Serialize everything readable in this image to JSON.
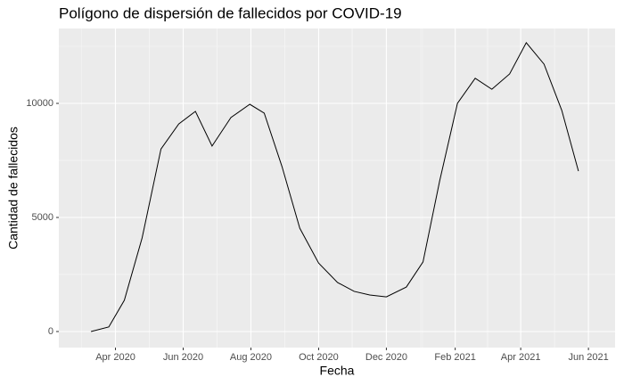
{
  "chart_data": {
    "type": "line",
    "title": "Polígono de dispersión de fallecidos por COVID-19",
    "x_label": "Fecha",
    "y_label": "Cantidad de fallecidos",
    "x": [
      "2020-03-10",
      "2020-03-26",
      "2020-04-09",
      "2020-04-25",
      "2020-05-12",
      "2020-05-28",
      "2020-06-12",
      "2020-06-27",
      "2020-07-14",
      "2020-07-31",
      "2020-08-13",
      "2020-08-29",
      "2020-09-14",
      "2020-10-01",
      "2020-10-18",
      "2020-11-02",
      "2020-11-16",
      "2020-12-01",
      "2020-12-19",
      "2021-01-03",
      "2021-01-18",
      "2021-02-03",
      "2021-02-19",
      "2021-03-06",
      "2021-03-22",
      "2021-04-06",
      "2021-04-22",
      "2021-05-08",
      "2021-05-23"
    ],
    "series": [
      {
        "color": "#000000",
        "values": [
          0,
          200,
          1370,
          4100,
          8000,
          9100,
          9650,
          8130,
          9380,
          9960,
          9570,
          7230,
          4530,
          3000,
          2150,
          1760,
          1600,
          1520,
          1950,
          3050,
          6600,
          10000,
          11100,
          10620,
          11290,
          12660,
          11720,
          9690,
          7030
        ]
      }
    ],
    "xlim": [
      "2020-02-10",
      "2021-06-25"
    ],
    "xticks": [
      {
        "value": "2020-04-01",
        "label": "Apr 2020"
      },
      {
        "value": "2020-06-01",
        "label": "Jun 2020"
      },
      {
        "value": "2020-08-01",
        "label": "Aug 2020"
      },
      {
        "value": "2020-10-01",
        "label": "Oct 2020"
      },
      {
        "value": "2020-12-01",
        "label": "Dec 2020"
      },
      {
        "value": "2021-02-01",
        "label": "Feb 2021"
      },
      {
        "value": "2021-04-01",
        "label": "Apr 2021"
      },
      {
        "value": "2021-06-01",
        "label": "Jun 2021"
      }
    ],
    "ylim": [
      -703,
      13281
    ],
    "yticks": [
      0,
      5000,
      10000
    ],
    "grid": true
  }
}
